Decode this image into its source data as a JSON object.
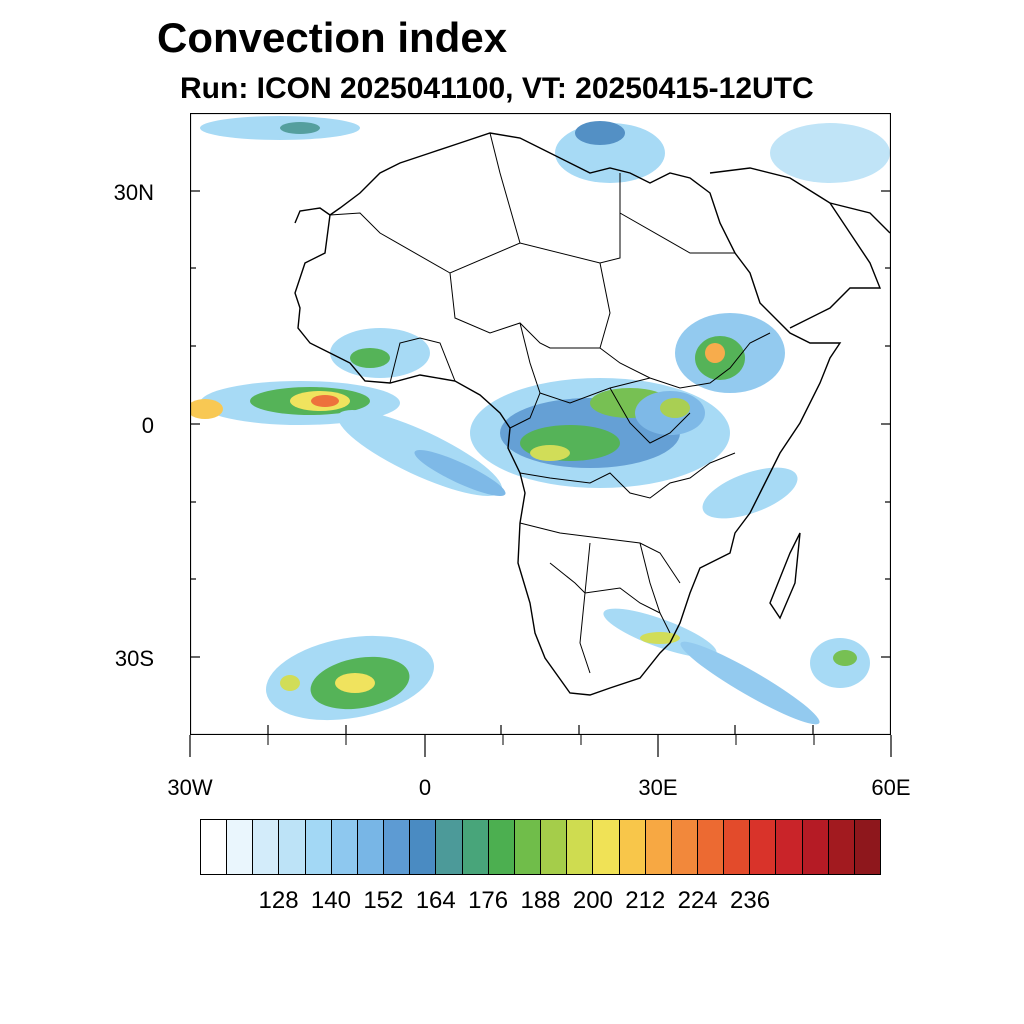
{
  "title": "Convection index",
  "subtitle": "Run: ICON 2025041100,  VT: 20250415-12UTC",
  "map": {
    "lat_ticks": [
      "30N",
      "0",
      "30S"
    ],
    "lon_ticks": [
      "30W",
      "0",
      "30E",
      "60E"
    ]
  },
  "colorbar": {
    "colors": [
      "#ffffff",
      "#eaf6fd",
      "#d3ecfa",
      "#bde3f7",
      "#a3d8f5",
      "#8ec8ef",
      "#78b6e6",
      "#5d9bd3",
      "#4a8bc2",
      "#4c9a99",
      "#48a57a",
      "#4caf50",
      "#70bd4a",
      "#a5cd4a",
      "#cfdc50",
      "#f0e256",
      "#f8c64a",
      "#f7a843",
      "#f2883b",
      "#ec6a32",
      "#e34b2b",
      "#d9332a",
      "#c92429",
      "#b51b25",
      "#a21a1f",
      "#8e171c"
    ],
    "labels": [
      "128",
      "140",
      "152",
      "164",
      "176",
      "188",
      "200",
      "212",
      "224",
      "236"
    ]
  }
}
